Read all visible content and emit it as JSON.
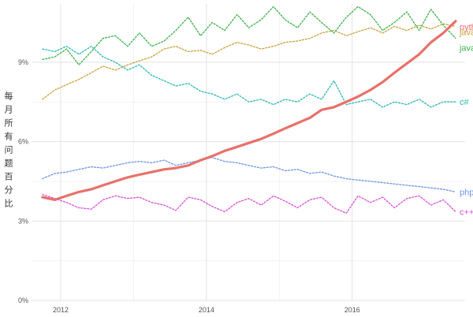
{
  "chart_data": {
    "type": "line",
    "title": "",
    "xlabel": "",
    "ylabel": "每月所有问题百分比",
    "xlim": [
      2011.6,
      2017.55
    ],
    "ylim": [
      0,
      11.2
    ],
    "x_ticks": [
      2012,
      2014,
      2016
    ],
    "x_tick_labels": [
      "2012",
      "2014",
      "2016"
    ],
    "y_ticks": [
      0,
      3,
      6,
      9
    ],
    "y_tick_labels": [
      "0%",
      "3%",
      "6%",
      "9%"
    ],
    "grid": true,
    "legend": "direct labels at line ends (right)",
    "series": [
      {
        "name": "python",
        "color": "#e8716b",
        "style": "solid",
        "x": [
          2011.75,
          2011.92,
          2012.08,
          2012.25,
          2012.42,
          2012.58,
          2012.75,
          2012.92,
          2013.08,
          2013.25,
          2013.42,
          2013.58,
          2013.75,
          2013.92,
          2014.08,
          2014.25,
          2014.42,
          2014.58,
          2014.75,
          2014.92,
          2015.08,
          2015.25,
          2015.42,
          2015.58,
          2015.75,
          2015.92,
          2016.08,
          2016.25,
          2016.42,
          2016.58,
          2016.75,
          2016.92,
          2017.08,
          2017.25,
          2017.42
        ],
        "values": [
          3.9,
          3.8,
          3.95,
          4.1,
          4.2,
          4.35,
          4.5,
          4.65,
          4.75,
          4.85,
          4.95,
          5.0,
          5.1,
          5.3,
          5.45,
          5.65,
          5.8,
          5.95,
          6.1,
          6.3,
          6.5,
          6.7,
          6.9,
          7.2,
          7.3,
          7.5,
          7.7,
          7.95,
          8.25,
          8.6,
          8.95,
          9.3,
          9.75,
          10.1,
          10.55
        ]
      },
      {
        "name": "javascript",
        "color": "#c9a13a",
        "style": "dotted",
        "x": [
          2011.75,
          2011.92,
          2012.08,
          2012.25,
          2012.42,
          2012.58,
          2012.75,
          2012.92,
          2013.08,
          2013.25,
          2013.42,
          2013.58,
          2013.75,
          2013.92,
          2014.08,
          2014.25,
          2014.42,
          2014.58,
          2014.75,
          2014.92,
          2015.08,
          2015.25,
          2015.42,
          2015.58,
          2015.75,
          2015.92,
          2016.08,
          2016.25,
          2016.42,
          2016.58,
          2016.75,
          2016.92,
          2017.08,
          2017.25,
          2017.42
        ],
        "values": [
          7.6,
          7.95,
          8.15,
          8.35,
          8.6,
          8.85,
          8.7,
          8.9,
          9.05,
          9.2,
          9.5,
          9.6,
          9.4,
          9.45,
          9.3,
          9.55,
          9.75,
          9.65,
          9.5,
          9.6,
          9.75,
          9.8,
          9.9,
          10.1,
          10.2,
          10.0,
          10.15,
          10.3,
          10.1,
          10.35,
          10.2,
          10.4,
          10.25,
          10.45,
          10.35
        ]
      },
      {
        "name": "java",
        "color": "#3bb24b",
        "style": "dotted",
        "x": [
          2011.75,
          2011.92,
          2012.08,
          2012.25,
          2012.42,
          2012.58,
          2012.75,
          2012.92,
          2013.08,
          2013.25,
          2013.42,
          2013.58,
          2013.75,
          2013.92,
          2014.08,
          2014.25,
          2014.42,
          2014.58,
          2014.75,
          2014.92,
          2015.08,
          2015.25,
          2015.42,
          2015.58,
          2015.75,
          2015.92,
          2016.08,
          2016.25,
          2016.42,
          2016.58,
          2016.75,
          2016.92,
          2017.08,
          2017.25,
          2017.42
        ],
        "values": [
          9.1,
          9.2,
          9.5,
          8.9,
          9.4,
          9.9,
          10.0,
          9.6,
          10.1,
          9.6,
          9.8,
          10.2,
          10.7,
          10.0,
          10.5,
          10.2,
          10.8,
          10.3,
          10.6,
          11.1,
          10.6,
          10.3,
          10.9,
          10.5,
          10.1,
          10.7,
          11.1,
          10.8,
          10.2,
          10.5,
          10.9,
          10.2,
          11.0,
          10.4,
          9.9
        ]
      },
      {
        "name": "c#",
        "color": "#2bb7b5",
        "style": "dotted",
        "x": [
          2011.75,
          2011.92,
          2012.08,
          2012.25,
          2012.42,
          2012.58,
          2012.75,
          2012.92,
          2013.08,
          2013.25,
          2013.42,
          2013.58,
          2013.75,
          2013.92,
          2014.08,
          2014.25,
          2014.42,
          2014.58,
          2014.75,
          2014.92,
          2015.08,
          2015.25,
          2015.42,
          2015.58,
          2015.75,
          2015.92,
          2016.08,
          2016.25,
          2016.42,
          2016.58,
          2016.75,
          2016.92,
          2017.08,
          2017.25,
          2017.42
        ],
        "values": [
          9.5,
          9.4,
          9.6,
          9.3,
          9.6,
          9.2,
          9.0,
          8.7,
          8.9,
          8.5,
          8.3,
          8.1,
          8.2,
          7.9,
          7.8,
          7.6,
          7.8,
          7.5,
          7.6,
          7.4,
          7.6,
          7.5,
          7.8,
          7.6,
          8.3,
          7.4,
          7.5,
          7.6,
          7.3,
          7.5,
          7.4,
          7.6,
          7.3,
          7.5,
          7.5
        ]
      },
      {
        "name": "php",
        "color": "#6a93e8",
        "style": "dotted",
        "x": [
          2011.75,
          2011.92,
          2012.08,
          2012.25,
          2012.42,
          2012.58,
          2012.75,
          2012.92,
          2013.08,
          2013.25,
          2013.42,
          2013.58,
          2013.75,
          2013.92,
          2014.08,
          2014.25,
          2014.42,
          2014.58,
          2014.75,
          2014.92,
          2015.08,
          2015.25,
          2015.42,
          2015.58,
          2015.75,
          2015.92,
          2016.08,
          2016.25,
          2016.42,
          2016.58,
          2016.75,
          2016.92,
          2017.08,
          2017.25,
          2017.42
        ],
        "values": [
          4.6,
          4.8,
          4.85,
          4.95,
          5.05,
          5.0,
          5.1,
          5.2,
          5.25,
          5.2,
          5.3,
          5.1,
          5.2,
          5.3,
          5.4,
          5.25,
          5.2,
          5.1,
          5.0,
          5.05,
          4.9,
          4.95,
          4.8,
          4.85,
          4.7,
          4.6,
          4.55,
          4.5,
          4.45,
          4.4,
          4.35,
          4.3,
          4.25,
          4.2,
          4.1
        ]
      },
      {
        "name": "c++",
        "color": "#d84fd8",
        "style": "dotted",
        "x": [
          2011.75,
          2011.92,
          2012.08,
          2012.25,
          2012.42,
          2012.58,
          2012.75,
          2012.92,
          2013.08,
          2013.25,
          2013.42,
          2013.58,
          2013.75,
          2013.92,
          2014.08,
          2014.25,
          2014.42,
          2014.58,
          2014.75,
          2014.92,
          2015.08,
          2015.25,
          2015.42,
          2015.58,
          2015.75,
          2015.92,
          2016.08,
          2016.25,
          2016.42,
          2016.58,
          2016.75,
          2016.92,
          2017.08,
          2017.25,
          2017.42
        ],
        "values": [
          4.0,
          3.85,
          3.7,
          3.5,
          3.45,
          3.8,
          3.95,
          3.85,
          3.9,
          3.7,
          3.6,
          3.4,
          3.9,
          3.8,
          3.55,
          3.35,
          3.7,
          3.85,
          3.6,
          3.95,
          3.75,
          3.5,
          3.8,
          3.9,
          3.5,
          3.3,
          3.95,
          3.7,
          3.9,
          3.5,
          3.85,
          3.95,
          3.6,
          3.8,
          3.35
        ]
      }
    ]
  }
}
